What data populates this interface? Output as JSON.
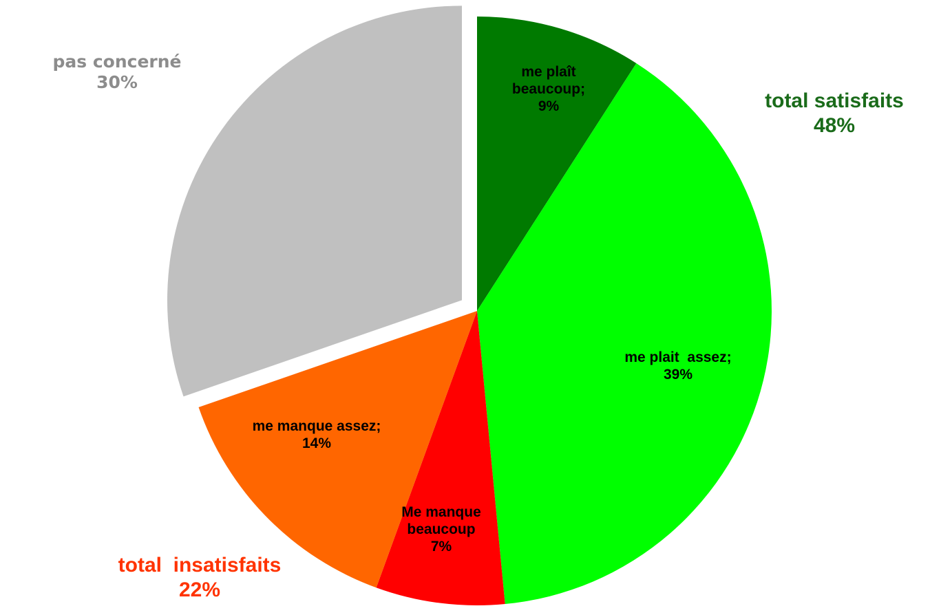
{
  "chart_data": {
    "type": "pie",
    "categories": [
      "me plaît beaucoup;",
      "me plait  assez;",
      "Me manque beaucoup",
      "me manque assez;",
      "pas concerné"
    ],
    "values": [
      9,
      39,
      7,
      14,
      30
    ],
    "value_labels": [
      "9%",
      "39%",
      "7%",
      "14%",
      "30%"
    ],
    "colors": [
      "#007a00",
      "#00ff00",
      "#ff0000",
      "#ff6600",
      "#c0c0c0"
    ],
    "annotations": [
      {
        "text": "total satisfaits",
        "label": "48%",
        "color": "#1a6b1a"
      },
      {
        "text": "total  insatisfaits",
        "label": "22%",
        "color": "#ff3300"
      }
    ]
  }
}
